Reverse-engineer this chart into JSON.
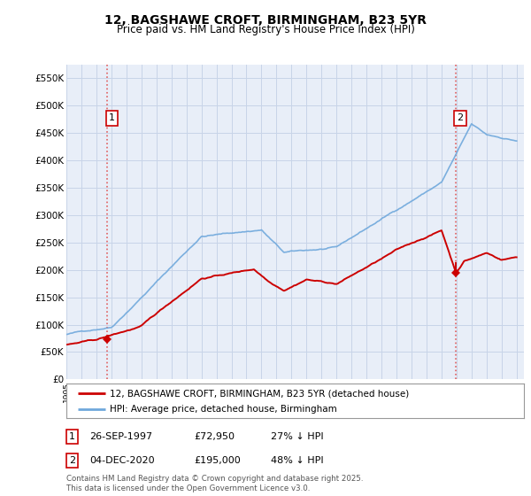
{
  "title": "12, BAGSHAWE CROFT, BIRMINGHAM, B23 5YR",
  "subtitle": "Price paid vs. HM Land Registry's House Price Index (HPI)",
  "plot_bg_color": "#e8eef8",
  "hpi_color": "#6fa8dc",
  "price_color": "#cc0000",
  "dashed_color": "#e06060",
  "marker_color": "#cc0000",
  "sale1_x": 1997.74,
  "sale1_y": 72950,
  "sale1_label": "1",
  "sale2_x": 2020.92,
  "sale2_y": 195000,
  "sale2_label": "2",
  "legend_label_price": "12, BAGSHAWE CROFT, BIRMINGHAM, B23 5YR (detached house)",
  "legend_label_hpi": "HPI: Average price, detached house, Birmingham",
  "copyright": "Contains HM Land Registry data © Crown copyright and database right 2025.\nThis data is licensed under the Open Government Licence v3.0.",
  "xmin": 1995.0,
  "xmax": 2025.5,
  "ylim": [
    0,
    575000
  ],
  "yticks": [
    0,
    50000,
    100000,
    150000,
    200000,
    250000,
    300000,
    350000,
    400000,
    450000,
    500000,
    550000
  ],
  "ytick_labels": [
    "£0",
    "£50K",
    "£100K",
    "£150K",
    "£200K",
    "£250K",
    "£300K",
    "£350K",
    "£400K",
    "£450K",
    "£500K",
    "£550K"
  ],
  "grid_color": "#c8d4e8",
  "fn1_date": "26-SEP-1997",
  "fn1_price": "£72,950",
  "fn1_hpi": "27% ↓ HPI",
  "fn2_date": "04-DEC-2020",
  "fn2_price": "£195,000",
  "fn2_hpi": "48% ↓ HPI"
}
